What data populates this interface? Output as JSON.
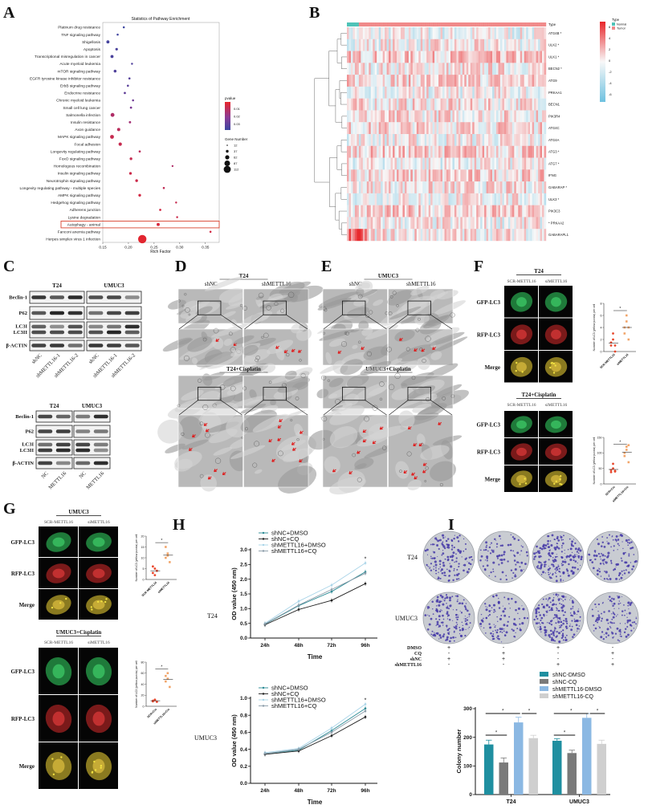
{
  "panel_letters": {
    "A": "A",
    "B": "B",
    "C": "C",
    "D": "D",
    "E": "E",
    "F": "F",
    "G": "G",
    "H": "H",
    "I": "I"
  },
  "colors": {
    "pvalue_high": "#3c46a0",
    "pvalue_mid": "#8a3c96",
    "pvalue_low": "#e8252a",
    "heat_pos": "#e8262a",
    "heat_neg": "#6ec1e0",
    "normal": "#4fc3b8",
    "tumor": "#f08a8a",
    "highlight": "#d9432f"
  },
  "chart_data": [
    {
      "id": "pathway-enrichment",
      "type": "scatter",
      "title": "Statistics of Pathway Enrichment",
      "xlabel": "Rich Factor",
      "xlim": [
        0.15,
        0.377
      ],
      "xticks": [
        "0.15",
        "0.20",
        "0.25",
        "0.30",
        "0.35"
      ],
      "categories": [
        "Platinum drug resistance",
        "TNF signaling pathway",
        "Shigellosis",
        "Apoptosis",
        "Transcriptional misregulation in cancer",
        "Acute myeloid leukemia",
        "mTOR signaling pathway",
        "EGFR tyrosine kinase inhibitor resistance",
        "ErbB signaling pathway",
        "Endocrine resistance",
        "Chronic myeloid leukemia",
        "Small cell lung cancer",
        "Salmonella infection",
        "Insulin resistance",
        "Axon guidance",
        "MAPK signaling pathway",
        "Focal adhesion",
        "Longevity regulating pathway",
        "FoxO signaling pathway",
        "Homologous recombination",
        "Insulin signaling pathway",
        "Neurotrophin signaling pathway",
        "Longevity regulating pathway - multiple species",
        "AMPK signaling pathway",
        "Hedgehog signaling pathway",
        "Adherens junction",
        "Lysine degradation",
        "Autophagy - animal",
        "Fanconi anemia pathway",
        "Herpes simplex virus 1 infection"
      ],
      "rich_factor": [
        0.191,
        0.179,
        0.16,
        0.177,
        0.168,
        0.207,
        0.174,
        0.202,
        0.199,
        0.193,
        0.209,
        0.205,
        0.169,
        0.203,
        0.181,
        0.168,
        0.184,
        0.222,
        0.205,
        0.286,
        0.204,
        0.216,
        0.269,
        0.222,
        0.293,
        0.262,
        0.295,
        0.258,
        0.36,
        0.227
      ],
      "gene_number": [
        14,
        14,
        30,
        22,
        30,
        13,
        26,
        15,
        15,
        16,
        14,
        16,
        42,
        18,
        32,
        42,
        34,
        16,
        24,
        12,
        24,
        24,
        14,
        24,
        13,
        16,
        13,
        30,
        14,
        112
      ],
      "pvalue": [
        0.032,
        0.031,
        0.03,
        0.029,
        0.029,
        0.028,
        0.028,
        0.027,
        0.026,
        0.025,
        0.022,
        0.02,
        0.01,
        0.012,
        0.008,
        0.006,
        0.006,
        0.008,
        0.006,
        0.01,
        0.005,
        0.005,
        0.007,
        0.004,
        0.006,
        0.004,
        0.005,
        0.003,
        0.004,
        0.001
      ],
      "highlighted": "Autophagy - animal",
      "legend": {
        "pvalue_title": "pvalue",
        "pvalue_ticks": [
          "0.01",
          "0.02",
          "0.03"
        ],
        "gene_title": "Gene Number",
        "gene_ticks": [
          "12",
          "37",
          "62",
          "87",
          "112"
        ],
        "placement": "right"
      }
    },
    {
      "id": "autophagy-gene-heatmap",
      "type": "heatmap",
      "rows": [
        "ATG4B *",
        "ULK2 *",
        "ULK1 *",
        "BECN2 *",
        "ATG9",
        "PRKAA1",
        "BECN1",
        "PIK3R4",
        "ATG4C",
        "ATG4A",
        "ATG3 *",
        "ATG7 *",
        "IFNG",
        "GABARAP *",
        "ULK3 *",
        "PIK3C3",
        "* PRKAA2",
        "GABARAPL1"
      ],
      "annotation_title": "Type",
      "groups": [
        "Normal",
        "Tumor"
      ],
      "scale_ticks": [
        "6",
        "4",
        "2",
        "0",
        "-2",
        "-4",
        "-6"
      ],
      "legend_title": "Type"
    },
    {
      "id": "cck8-t24",
      "type": "line",
      "row_label": "T24",
      "xlabel": "Time",
      "ylabel": "OD value (450 nm)",
      "categories": [
        "24h",
        "48h",
        "72h",
        "96h"
      ],
      "ylim": [
        0,
        3.0
      ],
      "yticks": [
        "0.0",
        "0.5",
        "1.0",
        "1.5",
        "2.0",
        "2.5",
        "3.0"
      ],
      "annotation": "*",
      "series": [
        {
          "name": "shNC+DMSO",
          "color": "#2a8a94",
          "values": [
            0.47,
            1.1,
            1.58,
            2.25
          ]
        },
        {
          "name": "shNC+CQ",
          "color": "#1e1e1e",
          "values": [
            0.45,
            0.97,
            1.28,
            1.85
          ]
        },
        {
          "name": "shMETTL16+DMSO",
          "color": "#a9d4e8",
          "values": [
            0.5,
            1.25,
            1.8,
            2.55
          ]
        },
        {
          "name": "shMETTL16+CQ",
          "color": "#8a9ba8",
          "values": [
            0.48,
            1.12,
            1.65,
            2.2
          ]
        }
      ]
    },
    {
      "id": "cck8-umuc3",
      "type": "line",
      "row_label": "UMUC3",
      "xlabel": "Time",
      "ylabel": "OD value (450 nm)",
      "categories": [
        "24h",
        "48h",
        "72h",
        "96h"
      ],
      "ylim": [
        0,
        1.0
      ],
      "yticks": [
        "0.0",
        "0.2",
        "0.4",
        "0.6",
        "0.8",
        "1.0"
      ],
      "annotation": "*",
      "series": [
        {
          "name": "shNC+DMSO",
          "color": "#2a8a94",
          "values": [
            0.35,
            0.39,
            0.62,
            0.88
          ]
        },
        {
          "name": "shNC+CQ",
          "color": "#1e1e1e",
          "values": [
            0.34,
            0.38,
            0.56,
            0.78
          ]
        },
        {
          "name": "shMETTL16+DMSO",
          "color": "#a9d4e8",
          "values": [
            0.36,
            0.41,
            0.65,
            0.93
          ]
        },
        {
          "name": "shMETTL16+CQ",
          "color": "#8a9ba8",
          "values": [
            0.35,
            0.4,
            0.6,
            0.85
          ]
        }
      ]
    },
    {
      "id": "colony-number",
      "type": "bar",
      "ylabel": "Colony number",
      "categories": [
        "T24",
        "UMUC3"
      ],
      "ylim": [
        0,
        300
      ],
      "yticks": [
        "0",
        "100",
        "200",
        "300"
      ],
      "series": [
        {
          "name": "shNC-DMSO",
          "color": "#1f8fa0",
          "values": [
            175,
            188
          ],
          "error": [
            15,
            7
          ]
        },
        {
          "name": "shNC-CQ",
          "color": "#7a7a7a",
          "values": [
            112,
            145
          ],
          "error": [
            16,
            10
          ]
        },
        {
          "name": "shMETTL16-DMSO",
          "color": "#8bb8e3",
          "values": [
            252,
            268
          ],
          "error": [
            18,
            15
          ]
        },
        {
          "name": "shMETTL16-CQ",
          "color": "#cfcfcf",
          "values": [
            197,
            177
          ],
          "error": [
            10,
            13
          ]
        }
      ],
      "significance": "*"
    },
    {
      "id": "lc3-puncta-t24",
      "type": "scatter",
      "ylabel": "Number of LC3 (yellow puncta) per cell",
      "categories": [
        "SCR-METTL16",
        "siMETTL16"
      ],
      "ylim": [
        0,
        8
      ],
      "yticks": [
        "0",
        "2",
        "4",
        "6",
        "8"
      ],
      "points": [
        [
          1,
          2,
          0,
          1.5,
          3,
          1
        ],
        [
          4,
          6,
          2,
          3,
          5,
          4
        ]
      ],
      "annotation": "*"
    },
    {
      "id": "lc3-puncta-t24-cis",
      "type": "scatter",
      "ylabel": "Number of LC3 (yellow puncta) per cell",
      "categories": [
        "SCR+Cis",
        "siMETTL16+Cis"
      ],
      "ylim": [
        0,
        150
      ],
      "yticks": [
        "0",
        "50",
        "100",
        "150"
      ],
      "points": [
        [
          45,
          50,
          40,
          38,
          65,
          42
        ],
        [
          100,
          120,
          70,
          90,
          110,
          125
        ]
      ],
      "annotation": "*"
    },
    {
      "id": "lc3-puncta-umuc3",
      "type": "scatter",
      "ylabel": "Number of LC3 (yellow puncta) per cell",
      "categories": [
        "SCR-METTL16",
        "siMETTL16"
      ],
      "ylim": [
        0,
        20
      ],
      "yticks": [
        "0",
        "5",
        "10",
        "15",
        "20"
      ],
      "points": [
        [
          3,
          5,
          4,
          6,
          2
        ],
        [
          10,
          12,
          8,
          15,
          11
        ]
      ],
      "annotation": "*"
    },
    {
      "id": "lc3-puncta-umuc3-cis",
      "type": "scatter",
      "ylabel": "Number of LC3 (yellow puncta) per cell",
      "categories": [
        "SCR+Cis",
        "siMETTL16+Cis"
      ],
      "ylim": [
        0,
        80
      ],
      "yticks": [
        "0",
        "20",
        "40",
        "60",
        "80"
      ],
      "points": [
        [
          10,
          12,
          8,
          9,
          11
        ],
        [
          45,
          50,
          35,
          55,
          60
        ]
      ],
      "annotation": "*"
    }
  ],
  "blots": {
    "top": {
      "groups": [
        "T24",
        "UMUC3"
      ],
      "rows": [
        "Beclin-1",
        "P62",
        "LC3I",
        "LC3II",
        "β-ACTIN"
      ],
      "lanes": [
        "shNC",
        "shMETTL16-1",
        "shMETTL16-2"
      ]
    },
    "bottom": {
      "groups": [
        "T24",
        "UMUC3"
      ],
      "rows": [
        "Beclin-1",
        "P62",
        "LC3I",
        "LC3II",
        "β-ACTIN"
      ],
      "lanes": [
        "NC",
        "METTL16"
      ]
    }
  },
  "tem": {
    "D": {
      "top_title": "T24",
      "bottom_title": "T24+Cisplatin",
      "cols": [
        "shNC",
        "shMETTL16"
      ]
    },
    "E": {
      "top_title": "UMUC3",
      "bottom_title": "UMUC3+Cisplatin",
      "cols": [
        "shNC",
        "shMETTL16"
      ]
    }
  },
  "fluor": {
    "F": {
      "top_title": "T24",
      "bottom_title": "T24+Cisplatin",
      "cols": [
        "SCR-METTL16",
        "siMETTL16"
      ],
      "rows": [
        "GFP-LC3",
        "RFP-LC3",
        "Merge"
      ]
    },
    "G": {
      "top_title": "UMUC3",
      "bottom_title": "UMUC3+Cisplatin",
      "cols": [
        "SCR-METTL16",
        "siMETTL16"
      ],
      "rows": [
        "GFP-LC3",
        "RFP-LC3",
        "Merge"
      ]
    }
  },
  "colony": {
    "row_labels": [
      "T24",
      "UMUC3"
    ],
    "treatments": [
      "DMSO",
      "CQ",
      "shNC",
      "shMETTL16"
    ],
    "matrix": [
      [
        "+",
        "-",
        "+",
        "-"
      ],
      [
        "-",
        "+",
        "+",
        "-"
      ],
      [
        "+",
        "-",
        "-",
        "+"
      ],
      [
        "-",
        "+",
        "-",
        "+"
      ]
    ]
  }
}
